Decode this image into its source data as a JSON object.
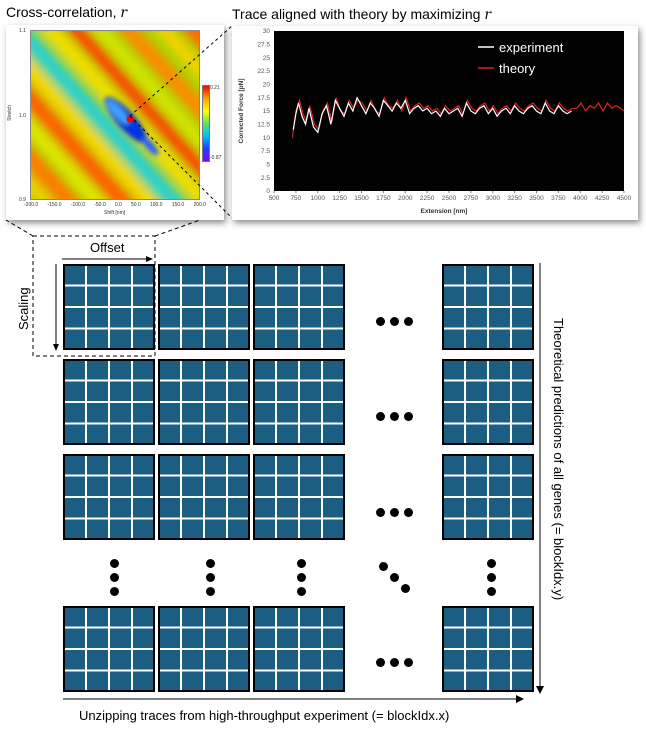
{
  "cross_correlation": {
    "title_text": "Cross-correlation, ",
    "title_var": "r",
    "colorbar_max": "0.21",
    "colorbar_min": "-0.87",
    "x_axis_label": "Shift [nm]",
    "y_axis_label": "Stretch",
    "x_ticks": [
      "-200.0",
      "-150.0",
      "-100.0",
      "-50.0",
      "0.0",
      "50.0",
      "100.0",
      "150.0",
      "200.0"
    ],
    "y_ticks": [
      "1.1",
      "1.0",
      "0.9"
    ]
  },
  "trace": {
    "title_text": "Trace aligned with theory by maximizing ",
    "title_var": "r",
    "chart_data": {
      "type": "line",
      "xlabel": "Extension [nm]",
      "ylabel": "Corrected Force [pN]",
      "xlim": [
        500,
        4500
      ],
      "ylim": [
        0,
        30
      ],
      "x_ticks": [
        "500",
        "750",
        "1000",
        "1250",
        "1500",
        "1750",
        "2000",
        "2250",
        "2500",
        "2750",
        "3000",
        "3250",
        "3500",
        "3750",
        "4000",
        "4250",
        "4500"
      ],
      "y_ticks": [
        "0",
        "2.5",
        "5",
        "7.5",
        "10",
        "12.5",
        "15",
        "17.5",
        "20",
        "22.5",
        "25",
        "27.5",
        "30"
      ],
      "background": "#000000",
      "legend_placement": "top-right",
      "series": [
        {
          "name": "experiment",
          "color": "#ffffff",
          "x": [
            720,
            750,
            780,
            820,
            860,
            900,
            950,
            1000,
            1050,
            1100,
            1150,
            1200,
            1250,
            1300,
            1350,
            1400,
            1450,
            1500,
            1550,
            1600,
            1650,
            1700,
            1750,
            1800,
            1850,
            1900,
            1950,
            2000,
            2050,
            2100,
            2150,
            2200,
            2250,
            2300,
            2350,
            2400,
            2450,
            2500,
            2550,
            2600,
            2650,
            2700,
            2750,
            2800,
            2850,
            2900,
            2950,
            3000,
            3050,
            3100,
            3150,
            3200,
            3250,
            3300,
            3350,
            3400,
            3450,
            3500,
            3550,
            3600,
            3650,
            3700,
            3750,
            3800,
            3850,
            3900
          ],
          "y": [
            11.5,
            14.5,
            16.5,
            14.0,
            12.5,
            15.5,
            12.0,
            11.0,
            14.5,
            16.0,
            12.5,
            17.0,
            15.5,
            14.0,
            16.5,
            15.0,
            17.5,
            16.0,
            14.5,
            16.5,
            15.5,
            14.0,
            17.0,
            16.0,
            15.0,
            16.5,
            15.5,
            17.0,
            14.5,
            15.5,
            16.0,
            15.0,
            15.5,
            14.5,
            15.0,
            14.0,
            15.5,
            14.5,
            15.0,
            15.5,
            14.0,
            16.5,
            15.0,
            14.5,
            15.5,
            16.0,
            14.5,
            15.5,
            14.0,
            15.0,
            15.5,
            14.5,
            16.0,
            15.0,
            14.5,
            15.5,
            16.0,
            15.0,
            14.5,
            16.5,
            15.0,
            14.5,
            16.0,
            15.0,
            14.5,
            15.0
          ]
        },
        {
          "name": "theory",
          "color": "#dd2222",
          "x": [
            710,
            750,
            790,
            830,
            870,
            910,
            960,
            1010,
            1060,
            1110,
            1160,
            1210,
            1260,
            1310,
            1360,
            1410,
            1460,
            1510,
            1560,
            1610,
            1660,
            1710,
            1760,
            1810,
            1860,
            1910,
            1960,
            2010,
            2060,
            2110,
            2160,
            2210,
            2260,
            2310,
            2360,
            2410,
            2460,
            2510,
            2560,
            2610,
            2660,
            2710,
            2760,
            2810,
            2860,
            2910,
            2960,
            3010,
            3060,
            3110,
            3160,
            3210,
            3260,
            3310,
            3360,
            3410,
            3460,
            3510,
            3560,
            3610,
            3660,
            3710,
            3760,
            3810,
            3860,
            3910,
            3960,
            4010,
            4060,
            4110,
            4160,
            4210,
            4260,
            4310,
            4360,
            4410,
            4460,
            4500
          ],
          "y": [
            10.0,
            15.0,
            17.0,
            14.5,
            13.0,
            16.0,
            12.5,
            11.5,
            15.0,
            16.5,
            13.0,
            17.5,
            15.0,
            14.5,
            17.0,
            15.5,
            17.0,
            16.5,
            15.0,
            17.0,
            15.0,
            14.5,
            17.5,
            16.0,
            15.5,
            17.0,
            15.0,
            17.5,
            15.0,
            16.0,
            16.5,
            15.5,
            16.0,
            15.0,
            15.5,
            14.5,
            16.0,
            15.0,
            15.5,
            16.0,
            14.5,
            17.0,
            15.5,
            15.0,
            16.0,
            16.5,
            15.0,
            16.0,
            14.5,
            15.5,
            16.0,
            15.0,
            16.5,
            15.5,
            15.0,
            16.0,
            16.5,
            15.5,
            15.0,
            17.0,
            15.5,
            15.0,
            16.5,
            15.5,
            15.0,
            15.5,
            15.5,
            16.5,
            15.0,
            16.0,
            15.5,
            16.5,
            15.0,
            16.5,
            15.5,
            16.0,
            15.5,
            15.0
          ]
        }
      ]
    }
  },
  "grid": {
    "offset_label": "Offset",
    "scaling_label": "Scaling",
    "y_axis_label": "Theoretical predictions of all genes (= blockIdx.y)",
    "x_axis_label": "Unzipping traces from high-throughput experiment (= blockIdx.x)",
    "block_color": "#1b5e82"
  }
}
